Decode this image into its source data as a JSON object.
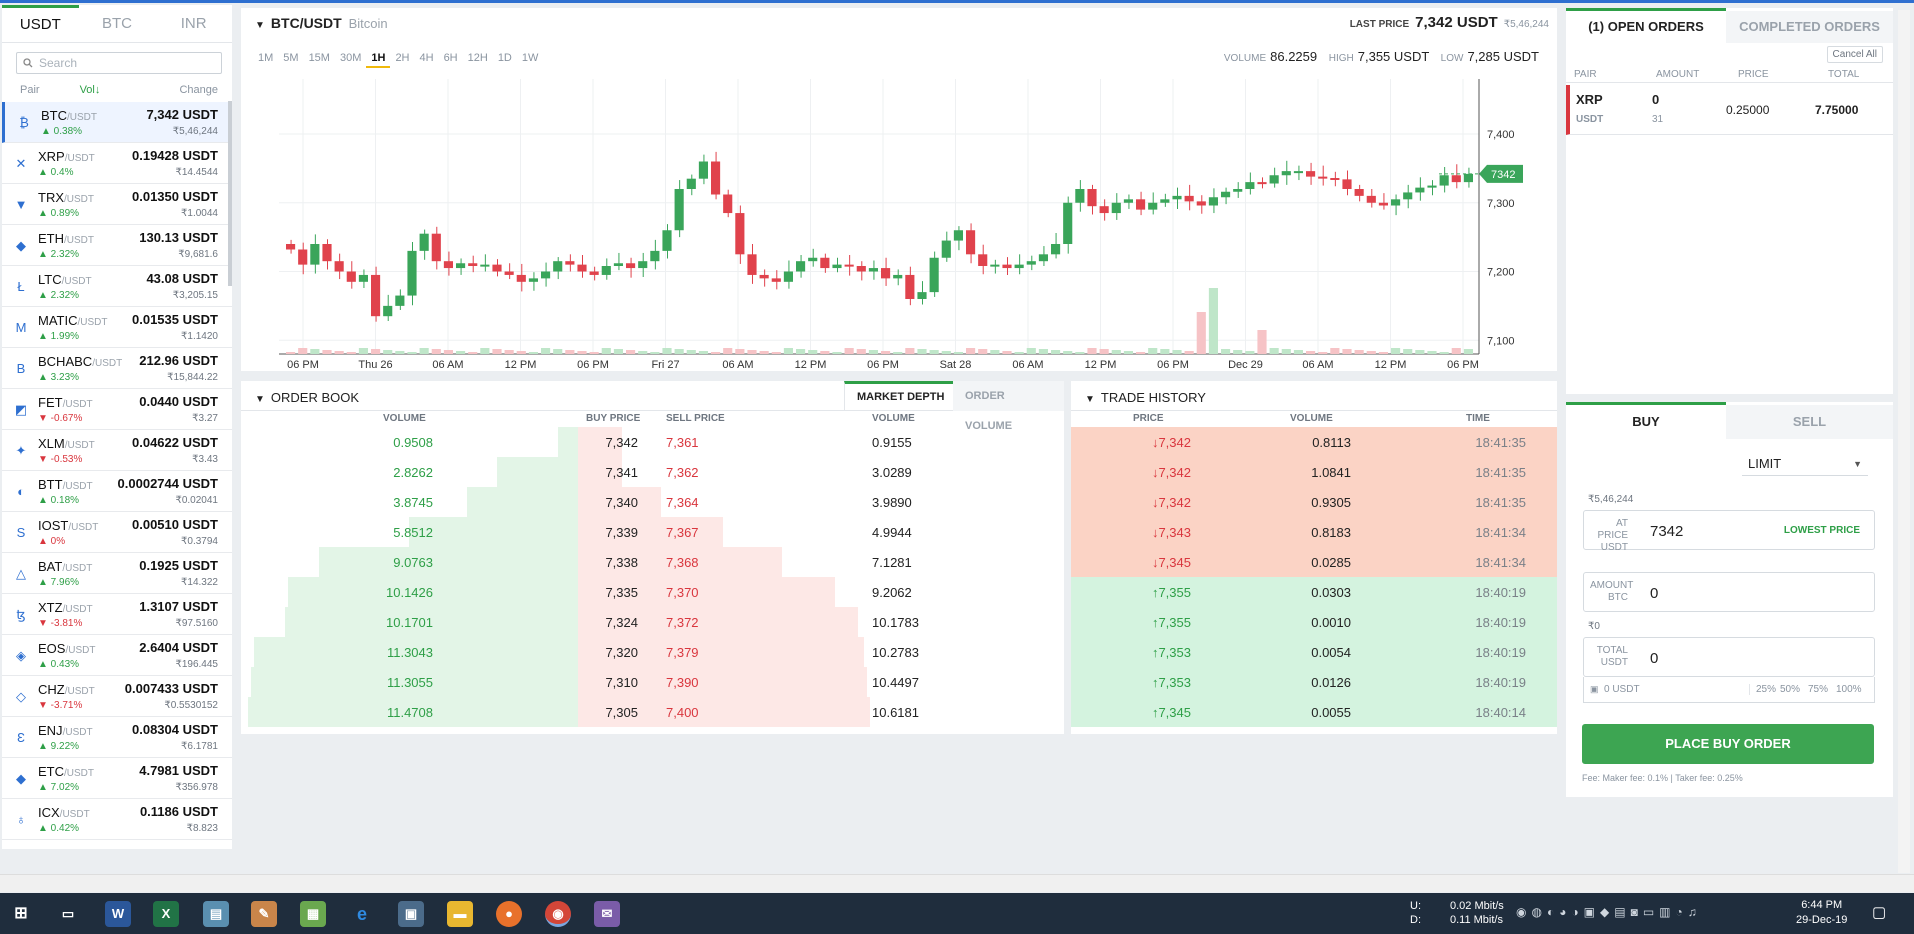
{
  "left": {
    "tabs": [
      "USDT",
      "BTC",
      "INR"
    ],
    "search_placeholder": "Search",
    "col_pair": "Pair",
    "col_vol": "Vol↓",
    "col_change": "Change",
    "pairs": [
      {
        "sym": "BTC",
        "quote": "/USDT",
        "chg": "▲ 0.38%",
        "dir": "up",
        "price": "7,342 USDT",
        "inr": "₹5,46,244",
        "icon": "₿"
      },
      {
        "sym": "XRP",
        "quote": "/USDT",
        "chg": "▲ 0.4%",
        "dir": "up",
        "price": "0.19428 USDT",
        "inr": "₹14.4544",
        "icon": "✕"
      },
      {
        "sym": "TRX",
        "quote": "/USDT",
        "chg": "▲ 0.89%",
        "dir": "up",
        "price": "0.01350 USDT",
        "inr": "₹1.0044",
        "icon": "▼"
      },
      {
        "sym": "ETH",
        "quote": "/USDT",
        "chg": "▲ 2.32%",
        "dir": "up",
        "price": "130.13 USDT",
        "inr": "₹9,681.6",
        "icon": "◆"
      },
      {
        "sym": "LTC",
        "quote": "/USDT",
        "chg": "▲ 2.32%",
        "dir": "up",
        "price": "43.08 USDT",
        "inr": "₹3,205.15",
        "icon": "Ł"
      },
      {
        "sym": "MATIC",
        "quote": "/USDT",
        "chg": "▲ 1.99%",
        "dir": "up",
        "price": "0.01535 USDT",
        "inr": "₹1.1420",
        "icon": "M"
      },
      {
        "sym": "BCHABC",
        "quote": "/USDT",
        "chg": "▲ 3.23%",
        "dir": "up",
        "price": "212.96 USDT",
        "inr": "₹15,844.22",
        "icon": "B"
      },
      {
        "sym": "FET",
        "quote": "/USDT",
        "chg": "▼ -0.67%",
        "dir": "down",
        "price": "0.0440 USDT",
        "inr": "₹3.27",
        "icon": "◩"
      },
      {
        "sym": "XLM",
        "quote": "/USDT",
        "chg": "▼ -0.53%",
        "dir": "down",
        "price": "0.04622 USDT",
        "inr": "₹3.43",
        "icon": "✦"
      },
      {
        "sym": "BTT",
        "quote": "/USDT",
        "chg": "▲ 0.18%",
        "dir": "up",
        "price": "0.0002744 USDT",
        "inr": "₹0.02041",
        "icon": "◐"
      },
      {
        "sym": "IOST",
        "quote": "/USDT",
        "chg": "▲ 0%",
        "dir": "down",
        "price": "0.00510 USDT",
        "inr": "₹0.3794",
        "icon": "S"
      },
      {
        "sym": "BAT",
        "quote": "/USDT",
        "chg": "▲ 7.96%",
        "dir": "up",
        "price": "0.1925 USDT",
        "inr": "₹14.322",
        "icon": "△"
      },
      {
        "sym": "XTZ",
        "quote": "/USDT",
        "chg": "▼ -3.81%",
        "dir": "down",
        "price": "1.3107 USDT",
        "inr": "₹97.5160",
        "icon": "ꜩ"
      },
      {
        "sym": "EOS",
        "quote": "/USDT",
        "chg": "▲ 0.43%",
        "dir": "up",
        "price": "2.6404 USDT",
        "inr": "₹196.445",
        "icon": "◈"
      },
      {
        "sym": "CHZ",
        "quote": "/USDT",
        "chg": "▼ -3.71%",
        "dir": "down",
        "price": "0.007433 USDT",
        "inr": "₹0.5530152",
        "icon": "◇"
      },
      {
        "sym": "ENJ",
        "quote": "/USDT",
        "chg": "▲ 9.22%",
        "dir": "up",
        "price": "0.08304 USDT",
        "inr": "₹6.1781",
        "icon": "Ɛ"
      },
      {
        "sym": "ETC",
        "quote": "/USDT",
        "chg": "▲ 7.02%",
        "dir": "up",
        "price": "4.7981 USDT",
        "inr": "₹356.978",
        "icon": "◆"
      },
      {
        "sym": "ICX",
        "quote": "/USDT",
        "chg": "▲ 0.42%",
        "dir": "up",
        "price": "0.1186 USDT",
        "inr": "₹8.823",
        "icon": "♁"
      }
    ]
  },
  "chart": {
    "pair": "BTC/USDT",
    "name": "Bitcoin",
    "last_price_label": "LAST PRICE",
    "last_price": "7,342 USDT",
    "last_price_inr": "₹5,46,244",
    "timeframes": [
      "1M",
      "5M",
      "15M",
      "30M",
      "1H",
      "2H",
      "4H",
      "6H",
      "12H",
      "1D",
      "1W"
    ],
    "active_tf": "1H",
    "volume_label": "VOLUME",
    "volume": "86.2259",
    "high_label": "HIGH",
    "high": "7,355 USDT",
    "low_label": "LOW",
    "low": "7,285 USDT",
    "current_tag": "7342"
  },
  "chart_data": {
    "type": "candlestick",
    "ylim": [
      7080,
      7480
    ],
    "yticks": [
      "7,100",
      "7,200",
      "7,300",
      "7,400"
    ],
    "xticks": [
      "06 PM",
      "Thu 26",
      "06 AM",
      "12 PM",
      "06 PM",
      "Fri 27",
      "06 AM",
      "12 PM",
      "06 PM",
      "Sat 28",
      "06 AM",
      "12 PM",
      "06 PM",
      "Dec 29",
      "06 AM",
      "12 PM",
      "06 PM"
    ],
    "close": [
      7232,
      7210,
      7240,
      7215,
      7200,
      7185,
      7195,
      7135,
      7150,
      7165,
      7230,
      7255,
      7215,
      7205,
      7212,
      7208,
      7210,
      7200,
      7195,
      7185,
      7190,
      7200,
      7215,
      7210,
      7200,
      7195,
      7208,
      7212,
      7205,
      7215,
      7230,
      7260,
      7320,
      7335,
      7360,
      7312,
      7285,
      7225,
      7195,
      7190,
      7185,
      7200,
      7215,
      7220,
      7205,
      7210,
      7208,
      7200,
      7205,
      7190,
      7195,
      7160,
      7170,
      7220,
      7245,
      7260,
      7225,
      7208,
      7210,
      7205,
      7210,
      7215,
      7225,
      7240,
      7300,
      7320,
      7295,
      7285,
      7300,
      7305,
      7290,
      7300,
      7305,
      7310,
      7302,
      7296,
      7308,
      7316,
      7320,
      7330,
      7328,
      7340,
      7346,
      7346,
      7338,
      7336,
      7334,
      7320,
      7310,
      7300,
      7296,
      7305,
      7315,
      7322,
      7325,
      7340,
      7330,
      7342
    ],
    "current": 7342
  },
  "orderbook": {
    "title": "ORDER BOOK",
    "tab_depth": "MARKET DEPTH",
    "tab_volume": "ORDER VOLUME",
    "cols": [
      "VOLUME",
      "BUY PRICE",
      "SELL PRICE",
      "VOLUME"
    ],
    "rows": [
      {
        "bv": "0.9508",
        "bp": "7,342",
        "sp": "7,361",
        "sv": "0.9155",
        "bd": 0.06,
        "sd": 0.15
      },
      {
        "bv": "2.8262",
        "bp": "7,341",
        "sp": "7,362",
        "sv": "3.0289",
        "bd": 0.24,
        "sd": 0.15
      },
      {
        "bv": "3.8745",
        "bp": "7,340",
        "sp": "7,364",
        "sv": "3.9890",
        "bd": 0.33,
        "sd": 0.28
      },
      {
        "bv": "5.8512",
        "bp": "7,339",
        "sp": "7,367",
        "sv": "4.9944",
        "bd": 0.5,
        "sd": 0.49
      },
      {
        "bv": "9.0763",
        "bp": "7,338",
        "sp": "7,368",
        "sv": "7.1281",
        "bd": 0.77,
        "sd": 0.69
      },
      {
        "bv": "10.1426",
        "bp": "7,335",
        "sp": "7,370",
        "sv": "9.2062",
        "bd": 0.86,
        "sd": 0.87
      },
      {
        "bv": "10.1701",
        "bp": "7,324",
        "sp": "7,372",
        "sv": "10.1783",
        "bd": 0.87,
        "sd": 0.95
      },
      {
        "bv": "11.3043",
        "bp": "7,320",
        "sp": "7,379",
        "sv": "10.2783",
        "bd": 0.96,
        "sd": 0.97
      },
      {
        "bv": "11.3055",
        "bp": "7,310",
        "sp": "7,390",
        "sv": "10.4497",
        "bd": 0.97,
        "sd": 0.98
      },
      {
        "bv": "11.4708",
        "bp": "7,305",
        "sp": "7,400",
        "sv": "10.6181",
        "bd": 0.98,
        "sd": 0.99
      }
    ]
  },
  "trades": {
    "title": "TRADE HISTORY",
    "cols": [
      "PRICE",
      "VOLUME",
      "TIME"
    ],
    "rows": [
      {
        "p": "↓7,342",
        "v": "0.8113",
        "t": "18:41:35",
        "dir": "down"
      },
      {
        "p": "↓7,342",
        "v": "1.0841",
        "t": "18:41:35",
        "dir": "down"
      },
      {
        "p": "↓7,342",
        "v": "0.9305",
        "t": "18:41:35",
        "dir": "down"
      },
      {
        "p": "↓7,343",
        "v": "0.8183",
        "t": "18:41:34",
        "dir": "down"
      },
      {
        "p": "↓7,345",
        "v": "0.0285",
        "t": "18:41:34",
        "dir": "down"
      },
      {
        "p": "↑7,355",
        "v": "0.0303",
        "t": "18:40:19",
        "dir": "up"
      },
      {
        "p": "↑7,355",
        "v": "0.0010",
        "t": "18:40:19",
        "dir": "up"
      },
      {
        "p": "↑7,353",
        "v": "0.0054",
        "t": "18:40:19",
        "dir": "up"
      },
      {
        "p": "↑7,353",
        "v": "0.0126",
        "t": "18:40:19",
        "dir": "up"
      },
      {
        "p": "↑7,345",
        "v": "0.0055",
        "t": "18:40:14",
        "dir": "up"
      }
    ]
  },
  "orders": {
    "tab_open": "(1) OPEN ORDERS",
    "tab_completed": "COMPLETED ORDERS",
    "cancel_all": "Cancel All",
    "cols": [
      "PAIR",
      "AMOUNT",
      "PRICE",
      "TOTAL"
    ],
    "row": {
      "base": "XRP",
      "quote": "USDT",
      "amount": "0",
      "filled": "31",
      "price": "0.25000",
      "total": "7.75000"
    }
  },
  "trade_form": {
    "tab_buy": "BUY",
    "tab_sell": "SELL",
    "order_type": "LIMIT",
    "inr_price": "₹5,46,244",
    "at_price_label": "AT PRICE",
    "at_price_unit": "USDT",
    "price_value": "7342",
    "lowest_price": "LOWEST PRICE",
    "amount_label": "AMOUNT",
    "amount_unit": "BTC",
    "amount_value": "0",
    "inr_total": "₹0",
    "total_label": "TOTAL",
    "total_unit": "USDT",
    "total_value": "0",
    "balance": "0 USDT",
    "pcts": [
      "25%",
      "50%",
      "75%",
      "100%"
    ],
    "submit": "PLACE BUY ORDER",
    "fee": "Fee: Maker fee: 0.1% | Taker fee: 0.25%"
  },
  "taskbar": {
    "net_up_label": "U:",
    "net_down_label": "D:",
    "net_up": "0.02 Mbit/s",
    "net_down": "0.11 Mbit/s",
    "time": "6:44 PM",
    "date": "29-Dec-19"
  },
  "colors": {
    "green": "#2e9f47",
    "red": "#d9363e",
    "accent": "#2e6fd0"
  }
}
